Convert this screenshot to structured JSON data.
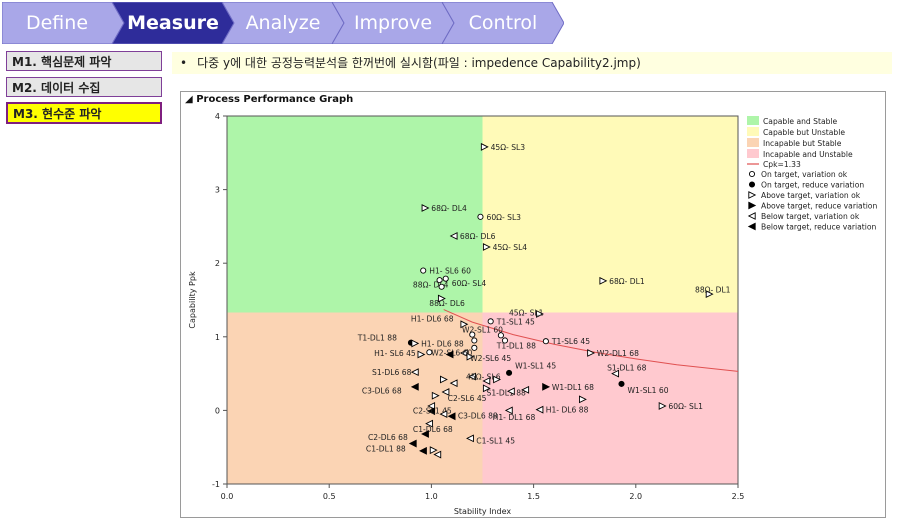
{
  "tabs": [
    {
      "label": "Define",
      "active": false
    },
    {
      "label": "Measure",
      "active": true
    },
    {
      "label": "Analyze",
      "active": false
    },
    {
      "label": "Improve",
      "active": false
    },
    {
      "label": "Control",
      "active": false
    }
  ],
  "colors": {
    "tab_inactive": "#a9a7e8",
    "tab_active": "#2e2c9a",
    "capable_stable": "#aef5a9",
    "capable_unstable": "#fffab8",
    "incapable_stable": "#fbd4b4",
    "incapable_unstable": "#ffc9cf",
    "cpk_line": "#e05050"
  },
  "menu": [
    {
      "label": "M1. 핵심문제 파악",
      "active": false
    },
    {
      "label": "M2. 데이터 수집",
      "active": false
    },
    {
      "label": "M3. 현수준 파악",
      "active": true
    }
  ],
  "note": {
    "bullet": "•",
    "text": "다중 y에 대한 공정능력분석을 한꺼번에 실시함(파일 : impedence Capability2.jmp)"
  },
  "panel": {
    "title": "Process Performance Graph"
  },
  "chart_data": {
    "type": "scatter",
    "xlabel": "Stability Index",
    "ylabel": "Capability Ppk",
    "xlim": [
      0,
      2.5
    ],
    "ylim": [
      -1,
      4
    ],
    "xticks": [
      "0.0",
      "0.5",
      "1.0",
      "1.5",
      "2.0",
      "2.5"
    ],
    "yticks": [
      "-1",
      "0",
      "1",
      "2",
      "3",
      "4"
    ],
    "stability_cut": 1.25,
    "capability_cut": 1.33,
    "legend": {
      "position": "right",
      "regions": [
        {
          "label": "Capable and Stable",
          "color": "#aef5a9"
        },
        {
          "label": "Capable but Unstable",
          "color": "#fffab8"
        },
        {
          "label": "Incapable but Stable",
          "color": "#fbd4b4"
        },
        {
          "label": "Incapable and Unstable",
          "color": "#ffc9cf"
        }
      ],
      "line": {
        "label": "Cpk=1.33",
        "color": "#e05050"
      },
      "markers": [
        {
          "symbol": "open-circle",
          "label": "On target, variation ok"
        },
        {
          "symbol": "filled-circle",
          "label": "On target, reduce variation"
        },
        {
          "symbol": "open-right",
          "label": "Above target, variation ok"
        },
        {
          "symbol": "filled-right",
          "label": "Above target, reduce variation"
        },
        {
          "symbol": "open-left",
          "label": "Below target, variation ok"
        },
        {
          "symbol": "filled-left",
          "label": "Below target, reduce variation"
        }
      ]
    },
    "cpk_curve": [
      [
        1.06,
        1.37
      ],
      [
        1.2,
        1.2
      ],
      [
        1.4,
        1.03
      ],
      [
        1.6,
        0.9
      ],
      [
        1.8,
        0.79
      ],
      [
        2.0,
        0.7
      ],
      [
        2.2,
        0.62
      ],
      [
        2.5,
        0.53
      ]
    ],
    "points": [
      {
        "x": 1.26,
        "y": 3.58,
        "m": "open-right",
        "label": "45Ω- SL3",
        "lx": 0.01,
        "ly": 0
      },
      {
        "x": 0.97,
        "y": 2.75,
        "m": "open-right",
        "label": "68Ω- DL4",
        "lx": 0.01,
        "ly": 0
      },
      {
        "x": 1.24,
        "y": 2.63,
        "m": "open-circle",
        "label": "60Ω- SL3",
        "lx": 0.01,
        "ly": 0
      },
      {
        "x": 1.11,
        "y": 2.37,
        "m": "open-left",
        "label": "68Ω- DL6",
        "lx": 0.01,
        "ly": 0
      },
      {
        "x": 1.27,
        "y": 2.22,
        "m": "open-right",
        "label": "45Ω- SL4",
        "lx": 0.01,
        "ly": 0
      },
      {
        "x": 0.96,
        "y": 1.9,
        "m": "open-circle",
        "label": "H1- SL6 60",
        "lx": 0.01,
        "ly": 0
      },
      {
        "x": 1.04,
        "y": 1.77,
        "m": "open-circle",
        "label": "88Ω- DL4",
        "lx": -0.15,
        "ly": -0.06
      },
      {
        "x": 1.07,
        "y": 1.79,
        "m": "open-circle",
        "label": "60Ω- SL4",
        "lx": 0.01,
        "ly": -0.06
      },
      {
        "x": 1.05,
        "y": 1.68,
        "m": "open-circle",
        "label": "",
        "lx": 0,
        "ly": 0
      },
      {
        "x": 1.05,
        "y": 1.52,
        "m": "open-right",
        "label": "88Ω- DL6",
        "lx": -0.08,
        "ly": -0.06
      },
      {
        "x": 1.84,
        "y": 1.76,
        "m": "open-right",
        "label": "68Ω- DL1",
        "lx": 0.01,
        "ly": 0
      },
      {
        "x": 2.36,
        "y": 1.58,
        "m": "open-right",
        "label": "88Ω- DL1",
        "lx": -0.09,
        "ly": 0.06
      },
      {
        "x": 1.53,
        "y": 1.31,
        "m": "open-right",
        "label": "45Ω- SL1",
        "lx": -0.17,
        "ly": 0.02
      },
      {
        "x": 1.16,
        "y": 1.17,
        "m": "open-right",
        "label": "H1- DL6 68",
        "lx": -0.28,
        "ly": 0.08
      },
      {
        "x": 1.29,
        "y": 1.21,
        "m": "open-circle",
        "label": "T1-SL1 45",
        "lx": 0.01,
        "ly": 0
      },
      {
        "x": 1.2,
        "y": 1.03,
        "m": "open-circle",
        "label": "W2-SL1 60",
        "lx": -0.07,
        "ly": 0.07
      },
      {
        "x": 1.34,
        "y": 1.02,
        "m": "open-circle",
        "label": "",
        "lx": 0,
        "ly": 0
      },
      {
        "x": 1.56,
        "y": 0.94,
        "m": "open-circle",
        "label": "T1-SL6 45",
        "lx": 0.01,
        "ly": 0
      },
      {
        "x": 0.9,
        "y": 0.92,
        "m": "filled-circle",
        "label": "T1-DL1 88",
        "lx": -0.28,
        "ly": 0.07
      },
      {
        "x": 1.36,
        "y": 0.95,
        "m": "open-circle",
        "label": "T1-DL1 88",
        "lx": -0.06,
        "ly": -0.07
      },
      {
        "x": 0.92,
        "y": 0.91,
        "m": "open-right",
        "label": "H1- DL6 88",
        "lx": 0.01,
        "ly": 0
      },
      {
        "x": 1.21,
        "y": 0.95,
        "m": "open-circle",
        "label": "",
        "lx": 0,
        "ly": 0
      },
      {
        "x": 1.21,
        "y": 0.85,
        "m": "open-circle",
        "label": "",
        "lx": 0,
        "ly": 0
      },
      {
        "x": 1.16,
        "y": 0.78,
        "m": "open-left",
        "label": "",
        "lx": 0,
        "ly": 0
      },
      {
        "x": 1.19,
        "y": 0.73,
        "m": "open-right",
        "label": "W2-SL6 45",
        "lx": -0.02,
        "ly": -0.02
      },
      {
        "x": 0.95,
        "y": 0.76,
        "m": "open-right",
        "label": "H1- SL6 45",
        "lx": -0.25,
        "ly": 0.02
      },
      {
        "x": 0.99,
        "y": 0.79,
        "m": "open-circle",
        "label": "W2-SL6 60",
        "lx": -0.01,
        "ly": 0
      },
      {
        "x": 1.09,
        "y": 0.76,
        "m": "filled-left",
        "label": "",
        "lx": 0,
        "ly": 0
      },
      {
        "x": 1.78,
        "y": 0.78,
        "m": "open-right",
        "label": "W2-DL1 68",
        "lx": 0.01,
        "ly": 0
      },
      {
        "x": 1.38,
        "y": 0.51,
        "m": "filled-circle",
        "label": "W1-SL1 45",
        "lx": 0.01,
        "ly": 0.1
      },
      {
        "x": 0.92,
        "y": 0.52,
        "m": "open-left",
        "label": "S1-DL6 68",
        "lx": -0.23,
        "ly": 0
      },
      {
        "x": 1.06,
        "y": 0.42,
        "m": "open-right",
        "label": "",
        "lx": 0,
        "ly": 0
      },
      {
        "x": 1.11,
        "y": 0.37,
        "m": "open-left",
        "label": "",
        "lx": 0,
        "ly": 0
      },
      {
        "x": 1.2,
        "y": 0.46,
        "m": "open-left",
        "label": "45Ω- SL6",
        "lx": -0.05,
        "ly": 0
      },
      {
        "x": 1.27,
        "y": 0.4,
        "m": "open-left",
        "label": "",
        "lx": 0,
        "ly": 0
      },
      {
        "x": 1.32,
        "y": 0.42,
        "m": "open-right",
        "label": "",
        "lx": 0,
        "ly": 0
      },
      {
        "x": 1.27,
        "y": 0.3,
        "m": "open-right",
        "label": "S1-DL1 88",
        "lx": -0.02,
        "ly": -0.06
      },
      {
        "x": 1.9,
        "y": 0.5,
        "m": "open-left",
        "label": "S1-DL1 68",
        "lx": -0.06,
        "ly": 0.08
      },
      {
        "x": 1.93,
        "y": 0.36,
        "m": "filled-circle",
        "label": "W1-SL1 60",
        "lx": 0.01,
        "ly": -0.08
      },
      {
        "x": 1.56,
        "y": 0.32,
        "m": "filled-right",
        "label": "W1-DL1 68",
        "lx": 0.01,
        "ly": 0
      },
      {
        "x": 0.92,
        "y": 0.32,
        "m": "filled-left",
        "label": "C3-DL6 68",
        "lx": -0.28,
        "ly": -0.05
      },
      {
        "x": 1.02,
        "y": 0.2,
        "m": "open-right",
        "label": "C2-SL6 45",
        "lx": 0.04,
        "ly": -0.03
      },
      {
        "x": 1.07,
        "y": 0.25,
        "m": "open-left",
        "label": "",
        "lx": 0,
        "ly": 0
      },
      {
        "x": 1.0,
        "y": 0.06,
        "m": "open-left",
        "label": "",
        "lx": 0,
        "ly": 0
      },
      {
        "x": 1.39,
        "y": 0.26,
        "m": "open-left",
        "label": "",
        "lx": 0,
        "ly": 0
      },
      {
        "x": 1.46,
        "y": 0.28,
        "m": "open-left",
        "label": "",
        "lx": 0,
        "ly": 0
      },
      {
        "x": 1.74,
        "y": 0.15,
        "m": "open-right",
        "label": "",
        "lx": 0,
        "ly": 0
      },
      {
        "x": 2.13,
        "y": 0.06,
        "m": "open-right",
        "label": "60Ω- SL1",
        "lx": 0.01,
        "ly": 0
      },
      {
        "x": 1.38,
        "y": 0.0,
        "m": "open-left",
        "label": "H1- DL1 68",
        "lx": -0.1,
        "ly": -0.09
      },
      {
        "x": 1.53,
        "y": 0.01,
        "m": "open-left",
        "label": "H1- DL6 88",
        "lx": 0.01,
        "ly": 0
      },
      {
        "x": 1.0,
        "y": -0.01,
        "m": "filled-left",
        "label": "C2-SL1 45",
        "lx": -0.11,
        "ly": 0.01
      },
      {
        "x": 1.06,
        "y": -0.05,
        "m": "open-left",
        "label": "",
        "lx": 0,
        "ly": 0
      },
      {
        "x": 1.1,
        "y": -0.08,
        "m": "filled-left",
        "label": "C3-DL6 88",
        "lx": 0.01,
        "ly": 0.01
      },
      {
        "x": 0.99,
        "y": -0.18,
        "m": "open-left",
        "label": "C1-DL6 68",
        "lx": -0.1,
        "ly": -0.07
      },
      {
        "x": 0.97,
        "y": -0.32,
        "m": "filled-left",
        "label": "C2-DL6 68",
        "lx": -0.3,
        "ly": -0.04
      },
      {
        "x": 0.91,
        "y": -0.45,
        "m": "filled-left",
        "label": "",
        "lx": 0,
        "ly": 0
      },
      {
        "x": 1.19,
        "y": -0.38,
        "m": "open-left",
        "label": "C1-SL1 45",
        "lx": 0.01,
        "ly": -0.03
      },
      {
        "x": 0.96,
        "y": -0.55,
        "m": "filled-left",
        "label": "C1-DL1 88",
        "lx": -0.3,
        "ly": 0.03
      },
      {
        "x": 1.01,
        "y": -0.54,
        "m": "open-right",
        "label": "",
        "lx": 0,
        "ly": 0
      },
      {
        "x": 1.03,
        "y": -0.6,
        "m": "open-left",
        "label": "",
        "lx": 0,
        "ly": 0
      }
    ]
  }
}
